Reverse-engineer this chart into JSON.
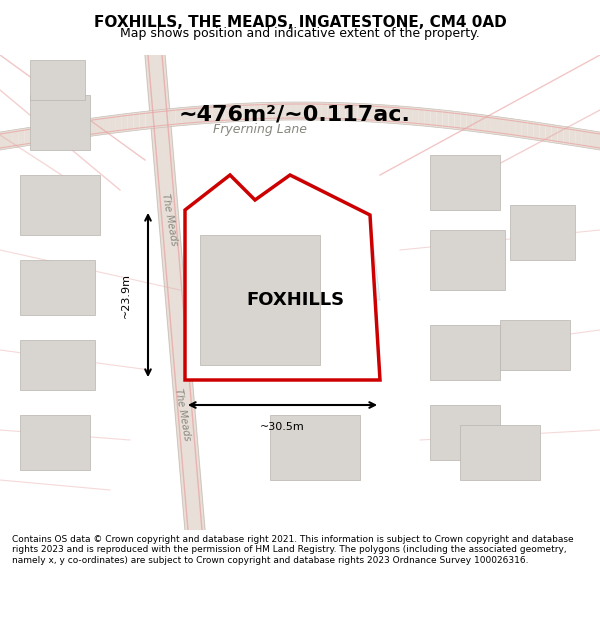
{
  "title": "FOXHILLS, THE MEADS, INGATESTONE, CM4 0AD",
  "subtitle": "Map shows position and indicative extent of the property.",
  "area_text": "~476m²/~0.117ac.",
  "property_name": "FOXHILLS",
  "dim_width": "~30.5m",
  "dim_height": "~23.9m",
  "road_label1": "Fryerning Lane",
  "road_label2": "The Meads",
  "road_label3": "The Meads",
  "footer": "Contains OS data © Crown copyright and database right 2021. This information is subject to Crown copyright and database rights 2023 and is reproduced with the permission of HM Land Registry. The polygons (including the associated geometry, namely x, y co-ordinates) are subject to Crown copyright and database rights 2023 Ordnance Survey 100026316.",
  "bg_color": "#f5f5f0",
  "map_bg": "#f0ede8",
  "road_color": "#e8e0d8",
  "road_outline": "#c8c0b8",
  "plot_fill": "#e8e4df",
  "plot_outline": "#cc0000",
  "building_fill": "#d8d4cf",
  "building_outline": "#b8b4af",
  "road_pink": "#e8a0a0",
  "road_pink_light": "#f0c0c0",
  "water_color": "#c8dce8",
  "annotation_color": "#111111",
  "road_text_color": "#888880",
  "footer_color": "#111111"
}
